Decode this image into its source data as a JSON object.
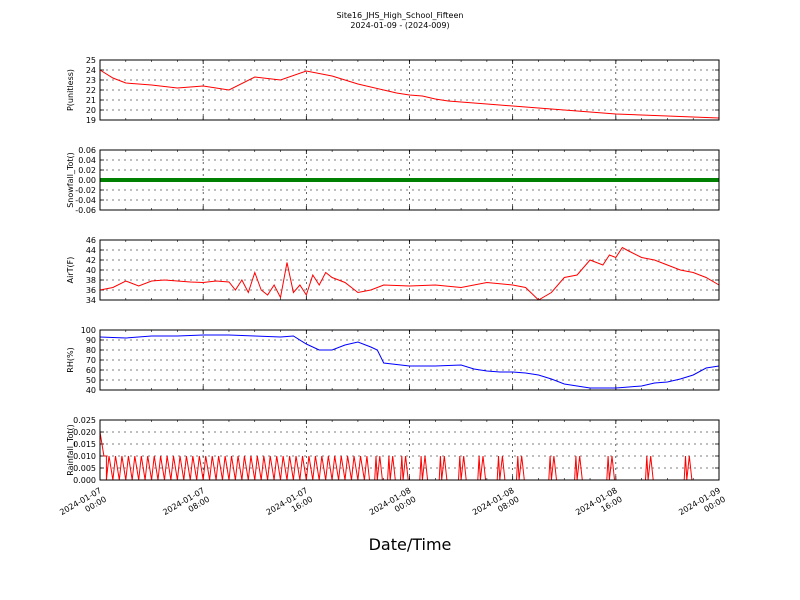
{
  "title": "Site16_JHS_High_School_Fifteen",
  "subtitle": "2024-01-09 - (2024-009)",
  "xlabel": "Date/Time",
  "x_ticks": [
    "2024-01-07|00:00",
    "2024-01-07|08:00",
    "2024-01-07|16:00",
    "2024-01-08|00:00",
    "2024-01-08|08:00",
    "2024-01-08|16:00",
    "2024-01-09|00:00"
  ],
  "chart_data": [
    {
      "type": "line",
      "ylabel": "P(unitless)",
      "ylim": [
        19,
        25
      ],
      "yticks": [
        19,
        20,
        21,
        22,
        23,
        24,
        25
      ],
      "color": "#ff0000",
      "grid": true,
      "x": [
        0,
        1,
        2,
        4,
        6,
        8,
        10,
        12,
        14,
        16,
        18,
        19,
        20,
        22,
        23,
        24,
        25,
        26,
        27,
        28,
        30,
        32,
        34,
        36,
        38,
        40,
        42,
        44,
        46,
        48
      ],
      "values": [
        24.0,
        23.2,
        22.7,
        22.5,
        22.2,
        22.4,
        22.0,
        23.3,
        23.0,
        23.9,
        23.4,
        23.0,
        22.6,
        22.0,
        21.7,
        21.5,
        21.4,
        21.1,
        20.9,
        20.8,
        20.6,
        20.4,
        20.2,
        20.0,
        19.8,
        19.6,
        19.5,
        19.4,
        19.3,
        19.2
      ]
    },
    {
      "type": "scatter",
      "ylabel": "Snowfall_Tot()",
      "ylim": [
        -0.06,
        0.06
      ],
      "yticks": [
        -0.06,
        -0.04,
        -0.02,
        0.0,
        0.02,
        0.04,
        0.06
      ],
      "color": "#008000",
      "grid": true,
      "x_range": [
        0,
        48
      ],
      "constant_value": 0.0
    },
    {
      "type": "line",
      "ylabel": "AirT(F)",
      "ylim": [
        34,
        46
      ],
      "yticks": [
        34,
        36,
        38,
        40,
        42,
        44,
        46
      ],
      "color": "#ff0000",
      "grid": true,
      "x": [
        0,
        1,
        2,
        3,
        4,
        5,
        6,
        7,
        8,
        9,
        10,
        10.5,
        11,
        11.5,
        12,
        12.5,
        13,
        13.5,
        14,
        14.5,
        15,
        15.5,
        16,
        16.5,
        17,
        17.5,
        18,
        18.5,
        19,
        20,
        21,
        22,
        24,
        26,
        28,
        30,
        32,
        33,
        34,
        35,
        36,
        37,
        38,
        39,
        39.5,
        40,
        40.5,
        41,
        42,
        43,
        44,
        45,
        46,
        47,
        48
      ],
      "values": [
        36,
        36.5,
        37.8,
        36.8,
        37.8,
        38,
        37.8,
        37.6,
        37.5,
        37.8,
        37.6,
        36.0,
        38.0,
        35.5,
        39.5,
        36.0,
        35.0,
        37.0,
        34.5,
        41.5,
        35.5,
        37.0,
        35.0,
        39.0,
        37.0,
        39.5,
        38.5,
        38.0,
        37.5,
        35.5,
        36.0,
        37.0,
        36.8,
        37.0,
        36.5,
        37.5,
        37.0,
        36.5,
        34.0,
        35.5,
        38.5,
        39.0,
        42.0,
        41.0,
        43.0,
        42.5,
        44.5,
        43.8,
        42.5,
        42.0,
        41.0,
        40.0,
        39.5,
        38.5,
        37.0
      ]
    },
    {
      "type": "line",
      "ylabel": "RH(%)",
      "ylim": [
        40,
        100
      ],
      "yticks": [
        40,
        50,
        60,
        70,
        80,
        90,
        100
      ],
      "color": "#0000ff",
      "grid": true,
      "x": [
        0,
        2,
        4,
        6,
        8,
        10,
        12,
        14,
        15,
        16,
        17,
        18,
        19,
        20,
        21,
        21.5,
        22,
        24,
        26,
        28,
        29,
        30,
        31,
        32,
        33,
        34,
        35,
        36,
        37,
        38,
        39,
        40,
        41,
        42,
        43,
        44,
        45,
        46,
        47,
        48
      ],
      "values": [
        93,
        92,
        94,
        94,
        95,
        95,
        94,
        93,
        94,
        86,
        80,
        80,
        85,
        88,
        83,
        80,
        67,
        64,
        64,
        65,
        61,
        59,
        58,
        58,
        57,
        55,
        51,
        46,
        44,
        42,
        42,
        42,
        43,
        44,
        47,
        48,
        51,
        55,
        62,
        64
      ]
    },
    {
      "type": "line",
      "ylabel": "Rainfall_Tot()",
      "ylim": [
        0,
        0.025
      ],
      "yticks": [
        0.0,
        0.005,
        0.01,
        0.015,
        0.02,
        0.025
      ],
      "color": "#ff0000",
      "grid": true,
      "baseline_x": [
        0,
        48
      ],
      "initial_value": 0.02,
      "spikes_x": [
        0.5,
        1.0,
        1.5,
        2.0,
        2.5,
        3.0,
        3.5,
        4.0,
        4.5,
        5.0,
        5.5,
        6.0,
        6.5,
        7.0,
        7.5,
        8.0,
        8.5,
        9.0,
        9.5,
        10.0,
        10.5,
        11.0,
        11.5,
        12.0,
        12.5,
        13.0,
        13.5,
        14.0,
        14.5,
        15.0,
        15.5,
        16.0,
        16.5,
        17.0,
        17.5,
        18.0,
        18.5,
        19.0,
        19.5,
        20.0,
        20.5,
        21.5,
        22.5,
        23.5,
        25.0,
        26.5,
        28.0,
        29.5,
        31.0,
        32.5,
        35.0,
        37.0,
        39.5,
        42.5,
        45.5
      ],
      "spike_value": 0.01
    }
  ]
}
